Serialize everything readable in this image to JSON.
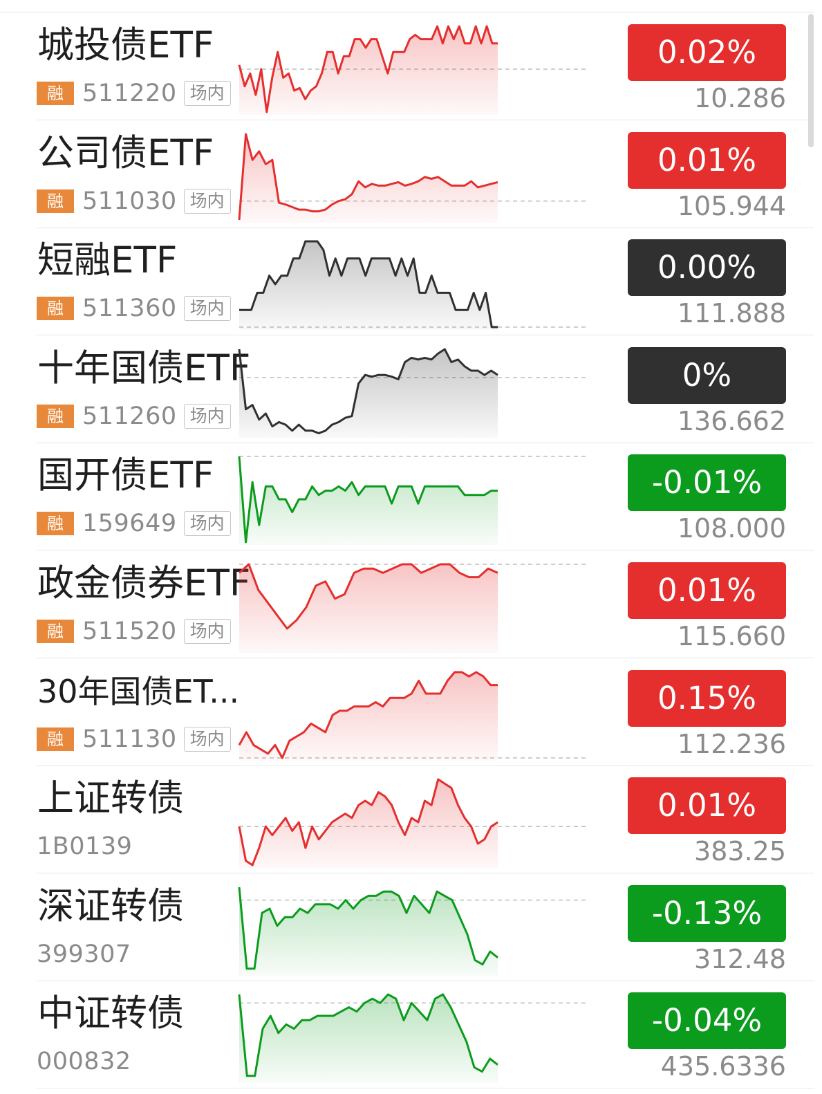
{
  "colors": {
    "up": "#e52e2e",
    "down": "#0b9b1d",
    "flat": "#303030",
    "rong_badge": "#e8883a"
  },
  "items": [
    {
      "name": "城投债ETF",
      "badge": "融",
      "code": "511220",
      "tag": "场内",
      "change": "0.02%",
      "price": "10.286",
      "trend": "up",
      "spark": {
        "base": 0.5,
        "values": [
          0.45,
          0.7,
          0.55,
          0.8,
          0.5,
          1.0,
          0.6,
          0.3,
          0.6,
          0.55,
          0.75,
          0.72,
          0.85,
          0.75,
          0.7,
          0.55,
          0.3,
          0.3,
          0.55,
          0.35,
          0.35,
          0.15,
          0.15,
          0.25,
          0.15,
          0.15,
          0.35,
          0.55,
          0.3,
          0.3,
          0.3,
          0.15,
          0.1,
          0.15,
          0.15,
          0.15,
          0.0,
          0.2,
          0.0,
          0.15,
          0.0,
          0.2,
          0.2,
          0.0,
          0.2,
          0.0,
          0.2,
          0.2
        ]
      }
    },
    {
      "name": "公司债ETF",
      "badge": "融",
      "code": "511030",
      "tag": "场内",
      "change": "0.01%",
      "price": "105.944",
      "trend": "up",
      "spark": {
        "base": 0.78,
        "values": [
          1.0,
          0.0,
          0.3,
          0.2,
          0.35,
          0.3,
          0.8,
          0.82,
          0.85,
          0.88,
          0.88,
          0.9,
          0.9,
          0.88,
          0.82,
          0.78,
          0.76,
          0.7,
          0.55,
          0.62,
          0.58,
          0.6,
          0.6,
          0.58,
          0.56,
          0.6,
          0.58,
          0.55,
          0.5,
          0.52,
          0.5,
          0.55,
          0.6,
          0.6,
          0.6,
          0.55,
          0.62,
          0.6,
          0.58,
          0.56
        ]
      }
    },
    {
      "name": "短融ETF",
      "badge": "融",
      "code": "511360",
      "tag": "场内",
      "change": "0.00%",
      "price": "111.888",
      "trend": "flat",
      "spark": {
        "base": 1.0,
        "values": [
          0.8,
          0.8,
          0.8,
          0.6,
          0.6,
          0.4,
          0.5,
          0.4,
          0.4,
          0.2,
          0.2,
          0.0,
          0.0,
          0.0,
          0.1,
          0.4,
          0.2,
          0.4,
          0.2,
          0.2,
          0.2,
          0.4,
          0.2,
          0.2,
          0.2,
          0.2,
          0.4,
          0.2,
          0.4,
          0.2,
          0.6,
          0.6,
          0.4,
          0.6,
          0.6,
          0.6,
          0.8,
          0.8,
          0.8,
          0.6,
          0.8,
          0.6,
          1.0,
          1.0
        ]
      }
    },
    {
      "name": "十年国债ETF",
      "badge": "融",
      "code": "511260",
      "tag": "场内",
      "change": "0%",
      "price": "136.662",
      "trend": "flat",
      "spark": {
        "base": 0.33,
        "values": [
          0.0,
          0.7,
          0.65,
          0.82,
          0.75,
          0.9,
          0.85,
          0.88,
          0.95,
          0.88,
          0.95,
          0.95,
          0.98,
          0.95,
          0.88,
          0.85,
          0.8,
          0.78,
          0.4,
          0.3,
          0.32,
          0.3,
          0.3,
          0.32,
          0.35,
          0.15,
          0.1,
          0.12,
          0.1,
          0.12,
          0.05,
          0.0,
          0.15,
          0.12,
          0.2,
          0.25,
          0.25,
          0.3,
          0.25,
          0.3
        ]
      }
    },
    {
      "name": "国开债ETF",
      "badge": "融",
      "code": "159649",
      "tag": "场内",
      "change": "-0.01%",
      "price": "108.000",
      "trend": "down",
      "spark": {
        "base": 0.0,
        "values": [
          0.0,
          1.0,
          0.3,
          0.8,
          0.35,
          0.35,
          0.5,
          0.5,
          0.65,
          0.5,
          0.5,
          0.35,
          0.45,
          0.4,
          0.4,
          0.35,
          0.4,
          0.3,
          0.45,
          0.35,
          0.35,
          0.35,
          0.35,
          0.55,
          0.35,
          0.35,
          0.35,
          0.55,
          0.35,
          0.35,
          0.35,
          0.35,
          0.35,
          0.35,
          0.45,
          0.45,
          0.45,
          0.45,
          0.4,
          0.4
        ]
      }
    },
    {
      "name": "政金债券ETF",
      "badge": "融",
      "code": "511520",
      "tag": "场内",
      "change": "0.01%",
      "price": "115.660",
      "trend": "up",
      "spark": {
        "base": 0.0,
        "values": [
          0.1,
          0.0,
          0.3,
          0.45,
          0.6,
          0.75,
          0.65,
          0.5,
          0.25,
          0.2,
          0.4,
          0.35,
          0.1,
          0.05,
          0.05,
          0.1,
          0.05,
          0.0,
          0.0,
          0.1,
          0.05,
          0.0,
          0.0,
          0.1,
          0.15,
          0.15,
          0.05,
          0.1
        ]
      }
    },
    {
      "name": "30年国债ET...",
      "badge": "融",
      "code": "511130",
      "tag": "场内",
      "change": "0.15%",
      "price": "112.236",
      "trend": "up",
      "spark": {
        "base": 1.0,
        "values": [
          0.85,
          0.7,
          0.85,
          0.9,
          0.95,
          0.85,
          1.0,
          0.8,
          0.75,
          0.7,
          0.6,
          0.65,
          0.7,
          0.5,
          0.45,
          0.45,
          0.4,
          0.4,
          0.4,
          0.35,
          0.4,
          0.3,
          0.3,
          0.3,
          0.25,
          0.1,
          0.25,
          0.25,
          0.25,
          0.1,
          0.0,
          0.0,
          0.05,
          0.0,
          0.05,
          0.15,
          0.15
        ]
      }
    },
    {
      "name": "上证转债",
      "badge": "",
      "code": "1B0139",
      "tag": "",
      "change": "0.01%",
      "price": "383.25",
      "trend": "up",
      "spark": {
        "base": 0.55,
        "values": [
          0.55,
          0.95,
          1.0,
          0.8,
          0.55,
          0.65,
          0.55,
          0.45,
          0.6,
          0.5,
          0.8,
          0.55,
          0.7,
          0.6,
          0.5,
          0.45,
          0.4,
          0.45,
          0.3,
          0.25,
          0.3,
          0.15,
          0.2,
          0.3,
          0.5,
          0.65,
          0.45,
          0.5,
          0.25,
          0.3,
          0.0,
          0.05,
          0.1,
          0.3,
          0.45,
          0.55,
          0.75,
          0.7,
          0.55,
          0.5
        ]
      }
    },
    {
      "name": "深证转债",
      "badge": "",
      "code": "399307",
      "tag": "",
      "change": "-0.13%",
      "price": "312.48",
      "trend": "down",
      "spark": {
        "base": 0.15,
        "values": [
          0.0,
          0.95,
          0.95,
          0.3,
          0.25,
          0.45,
          0.35,
          0.35,
          0.25,
          0.3,
          0.2,
          0.2,
          0.2,
          0.25,
          0.15,
          0.25,
          0.15,
          0.1,
          0.1,
          0.05,
          0.05,
          0.1,
          0.3,
          0.1,
          0.2,
          0.3,
          0.05,
          0.1,
          0.15,
          0.35,
          0.55,
          0.85,
          0.9,
          0.75,
          0.82
        ]
      }
    },
    {
      "name": "中证转债",
      "badge": "",
      "code": "000832",
      "tag": "",
      "change": "-0.04%",
      "price": "435.6336",
      "trend": "down",
      "spark": {
        "base": 0.1,
        "values": [
          0.0,
          0.95,
          0.95,
          0.4,
          0.25,
          0.45,
          0.35,
          0.4,
          0.3,
          0.3,
          0.25,
          0.25,
          0.25,
          0.2,
          0.15,
          0.2,
          0.1,
          0.05,
          0.1,
          0.0,
          0.05,
          0.3,
          0.1,
          0.2,
          0.3,
          0.05,
          0.0,
          0.15,
          0.35,
          0.55,
          0.85,
          0.9,
          0.75,
          0.82
        ]
      }
    }
  ]
}
